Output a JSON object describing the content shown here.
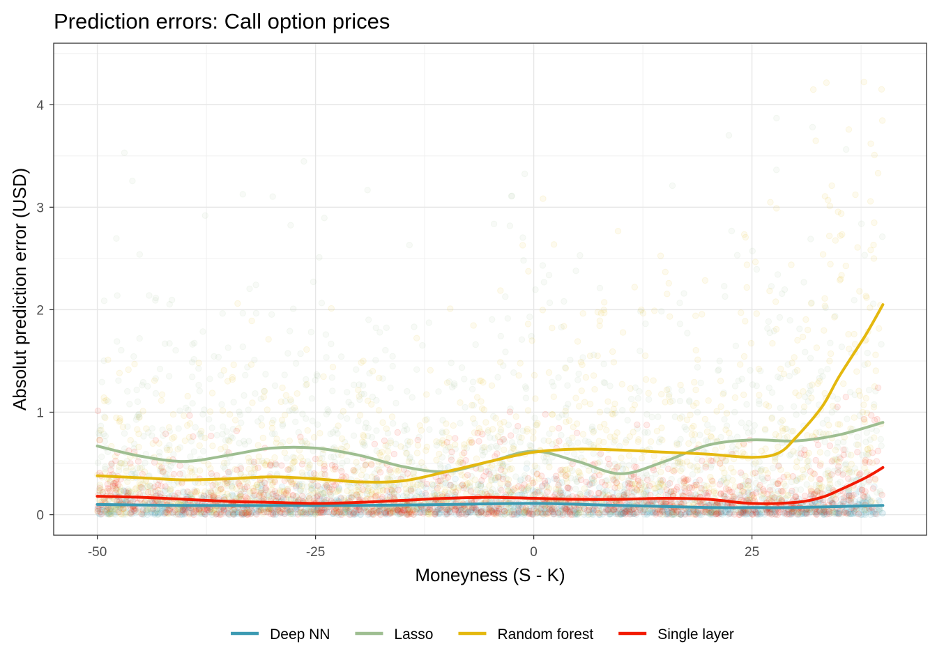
{
  "chart_data": {
    "type": "scatter",
    "title": "Prediction errors: Call option prices",
    "xlabel": "Moneyness (S - K)",
    "ylabel": "Absolut prediction error (USD)",
    "xlim": [
      -55,
      45
    ],
    "ylim": [
      -0.2,
      4.6
    ],
    "x_ticks": [
      -50,
      -25,
      0,
      25
    ],
    "x_tick_labels": [
      "-50",
      "-25",
      "0",
      "25"
    ],
    "y_ticks": [
      0,
      1,
      2,
      3,
      4
    ],
    "y_tick_labels": [
      "0",
      "1",
      "2",
      "3",
      "4"
    ],
    "grid": true,
    "legend_position": "bottom",
    "series": [
      {
        "name": "Deep NN",
        "color": "#3B9AB2",
        "smooth_x": [
          -50,
          -40,
          -30,
          -20,
          -10,
          0,
          10,
          20,
          25,
          30,
          40
        ],
        "smooth_y": [
          0.1,
          0.09,
          0.09,
          0.09,
          0.1,
          0.11,
          0.09,
          0.07,
          0.07,
          0.07,
          0.09
        ]
      },
      {
        "name": "Lasso",
        "color": "#9EBE91",
        "smooth_x": [
          -50,
          -45,
          -40,
          -35,
          -30,
          -25,
          -20,
          -15,
          -10,
          -5,
          0,
          5,
          10,
          15,
          20,
          25,
          30,
          35,
          40
        ],
        "smooth_y": [
          0.67,
          0.57,
          0.52,
          0.58,
          0.65,
          0.65,
          0.58,
          0.47,
          0.42,
          0.52,
          0.62,
          0.52,
          0.4,
          0.52,
          0.68,
          0.73,
          0.72,
          0.78,
          0.9
        ]
      },
      {
        "name": "Random forest",
        "color": "#E4B80E",
        "smooth_x": [
          -50,
          -45,
          -40,
          -35,
          -30,
          -25,
          -20,
          -15,
          -10,
          -5,
          0,
          5,
          10,
          15,
          20,
          25,
          28,
          30,
          33,
          35,
          38,
          40
        ],
        "smooth_y": [
          0.38,
          0.36,
          0.34,
          0.35,
          0.37,
          0.35,
          0.32,
          0.33,
          0.42,
          0.52,
          0.61,
          0.64,
          0.63,
          0.61,
          0.59,
          0.56,
          0.6,
          0.75,
          1.05,
          1.35,
          1.75,
          2.05
        ]
      },
      {
        "name": "Single layer",
        "color": "#F21A00",
        "smooth_x": [
          -50,
          -45,
          -40,
          -35,
          -30,
          -25,
          -20,
          -15,
          -10,
          -5,
          0,
          5,
          10,
          15,
          20,
          25,
          30,
          33,
          35,
          38,
          40
        ],
        "smooth_y": [
          0.18,
          0.17,
          0.15,
          0.13,
          0.12,
          0.11,
          0.12,
          0.14,
          0.16,
          0.17,
          0.16,
          0.15,
          0.15,
          0.16,
          0.15,
          0.11,
          0.12,
          0.17,
          0.24,
          0.36,
          0.46
        ]
      }
    ]
  }
}
